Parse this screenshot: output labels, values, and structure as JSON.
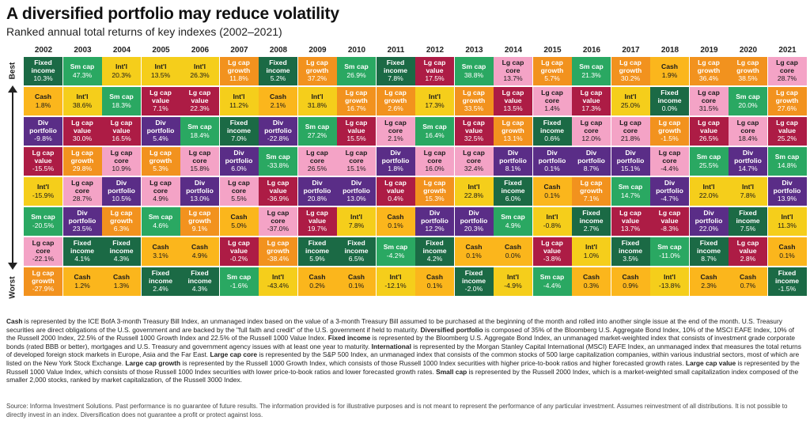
{
  "title": "A diversified portfolio may reduce volatility",
  "subtitle": "Ranked annual total returns of key indexes (2002–2021)",
  "axis": {
    "best": "Best",
    "worst": "Worst"
  },
  "colors": {
    "Fixed income": "#1b6a45",
    "Sm cap": "#2aa862",
    "Int'l": "#f5ce1b",
    "Lg cap core": "#f4a3c6",
    "Lg cap growth": "#f2921e",
    "Lg cap value": "#ad1c45",
    "Cash": "#fbb61c",
    "Div portfolio": "#5a2d87"
  },
  "text_colors": {
    "Fixed income": "#ffffff",
    "Sm cap": "#ffffff",
    "Int'l": "#1a1a1a",
    "Lg cap core": "#1a1a1a",
    "Lg cap growth": "#ffffff",
    "Lg cap value": "#ffffff",
    "Cash": "#1a1a1a",
    "Div portfolio": "#ffffff"
  },
  "chart_data": {
    "type": "table",
    "years": [
      "2002",
      "2003",
      "2004",
      "2005",
      "2006",
      "2007",
      "2008",
      "2009",
      "2010",
      "2011",
      "2012",
      "2013",
      "2014",
      "2015",
      "2016",
      "2017",
      "2018",
      "2019",
      "2020",
      "2021"
    ],
    "columns": [
      [
        [
          "Fixed income",
          "10.3%"
        ],
        [
          "Cash",
          "1.8%"
        ],
        [
          "Div portfolio",
          "-9.8%"
        ],
        [
          "Lg cap value",
          "-15.5%"
        ],
        [
          "Int'l",
          "-15.9%"
        ],
        [
          "Sm cap",
          "-20.5%"
        ],
        [
          "Lg cap core",
          "-22.1%"
        ],
        [
          "Lg cap growth",
          "-27.9%"
        ]
      ],
      [
        [
          "Sm cap",
          "47.3%"
        ],
        [
          "Int'l",
          "38.6%"
        ],
        [
          "Lg cap value",
          "30.0%"
        ],
        [
          "Lg cap growth",
          "29.8%"
        ],
        [
          "Lg cap core",
          "28.7%"
        ],
        [
          "Div portfolio",
          "23.5%"
        ],
        [
          "Fixed income",
          "4.1%"
        ],
        [
          "Cash",
          "1.2%"
        ]
      ],
      [
        [
          "Int'l",
          "20.3%"
        ],
        [
          "Sm cap",
          "18.3%"
        ],
        [
          "Lg cap value",
          "16.5%"
        ],
        [
          "Lg cap core",
          "10.9%"
        ],
        [
          "Div portfolio",
          "10.5%"
        ],
        [
          "Lg cap growth",
          "6.3%"
        ],
        [
          "Fixed income",
          "4.3%"
        ],
        [
          "Cash",
          "1.3%"
        ]
      ],
      [
        [
          "Int'l",
          "13.5%"
        ],
        [
          "Lg cap value",
          "7.1%"
        ],
        [
          "Div portfolio",
          "5.4%"
        ],
        [
          "Lg cap growth",
          "5.3%"
        ],
        [
          "Lg cap core",
          "4.9%"
        ],
        [
          "Sm cap",
          "4.6%"
        ],
        [
          "Cash",
          "3.1%"
        ],
        [
          "Fixed income",
          "2.4%"
        ]
      ],
      [
        [
          "Int'l",
          "26.3%"
        ],
        [
          "Lg cap value",
          "22.3%"
        ],
        [
          "Sm cap",
          "18.4%"
        ],
        [
          "Lg cap core",
          "15.8%"
        ],
        [
          "Div portfolio",
          "13.0%"
        ],
        [
          "Lg cap growth",
          "9.1%"
        ],
        [
          "Cash",
          "4.9%"
        ],
        [
          "Fixed income",
          "4.3%"
        ]
      ],
      [
        [
          "Lg cap growth",
          "11.8%"
        ],
        [
          "Int'l",
          "11.2%"
        ],
        [
          "Fixed income",
          "7.0%"
        ],
        [
          "Div portfolio",
          "6.0%"
        ],
        [
          "Lg cap core",
          "5.5%"
        ],
        [
          "Cash",
          "5.0%"
        ],
        [
          "Lg cap value",
          "-0.2%"
        ],
        [
          "Sm cap",
          "-1.6%"
        ]
      ],
      [
        [
          "Fixed income",
          "5.2%"
        ],
        [
          "Cash",
          "2.1%"
        ],
        [
          "Div portfolio",
          "-22.8%"
        ],
        [
          "Sm cap",
          "-33.8%"
        ],
        [
          "Lg cap value",
          "-36.9%"
        ],
        [
          "Lg cap core",
          "-37.0%"
        ],
        [
          "Lg cap growth",
          "-38.4%"
        ],
        [
          "Int'l",
          "-43.4%"
        ]
      ],
      [
        [
          "Lg cap growth",
          "37.2%"
        ],
        [
          "Int'l",
          "31.8%"
        ],
        [
          "Sm cap",
          "27.2%"
        ],
        [
          "Lg cap core",
          "26.5%"
        ],
        [
          "Div portfolio",
          "20.8%"
        ],
        [
          "Lg cap value",
          "19.7%"
        ],
        [
          "Fixed income",
          "5.9%"
        ],
        [
          "Cash",
          "0.2%"
        ]
      ],
      [
        [
          "Sm cap",
          "26.9%"
        ],
        [
          "Lg cap growth",
          "16.7%"
        ],
        [
          "Lg cap value",
          "15.5%"
        ],
        [
          "Lg cap core",
          "15.1%"
        ],
        [
          "Div portfolio",
          "13.0%"
        ],
        [
          "Int'l",
          "7.8%"
        ],
        [
          "Fixed income",
          "6.5%"
        ],
        [
          "Cash",
          "0.1%"
        ]
      ],
      [
        [
          "Fixed income",
          "7.8%"
        ],
        [
          "Lg cap growth",
          "2.6%"
        ],
        [
          "Lg cap core",
          "2.1%"
        ],
        [
          "Div portfolio",
          "1.8%"
        ],
        [
          "Lg cap value",
          "0.4%"
        ],
        [
          "Cash",
          "0.1%"
        ],
        [
          "Sm cap",
          "-4.2%"
        ],
        [
          "Int'l",
          "-12.1%"
        ]
      ],
      [
        [
          "Lg cap value",
          "17.5%"
        ],
        [
          "Int'l",
          "17.3%"
        ],
        [
          "Sm cap",
          "16.4%"
        ],
        [
          "Lg cap core",
          "16.0%"
        ],
        [
          "Lg cap growth",
          "15.3%"
        ],
        [
          "Div portfolio",
          "12.2%"
        ],
        [
          "Fixed income",
          "4.2%"
        ],
        [
          "Cash",
          "0.1%"
        ]
      ],
      [
        [
          "Sm cap",
          "38.8%"
        ],
        [
          "Lg cap growth",
          "33.5%"
        ],
        [
          "Lg cap value",
          "32.5%"
        ],
        [
          "Lg cap core",
          "32.4%"
        ],
        [
          "Int'l",
          "22.8%"
        ],
        [
          "Div portfolio",
          "20.3%"
        ],
        [
          "Cash",
          "0.1%"
        ],
        [
          "Fixed income",
          "-2.0%"
        ]
      ],
      [
        [
          "Lg cap core",
          "13.7%"
        ],
        [
          "Lg cap value",
          "13.5%"
        ],
        [
          "Lg cap growth",
          "13.1%"
        ],
        [
          "Div portfolio",
          "8.1%"
        ],
        [
          "Fixed income",
          "6.0%"
        ],
        [
          "Sm cap",
          "4.9%"
        ],
        [
          "Cash",
          "0.0%"
        ],
        [
          "Int'l",
          "-4.9%"
        ]
      ],
      [
        [
          "Lg cap growth",
          "5.7%"
        ],
        [
          "Lg cap core",
          "1.4%"
        ],
        [
          "Fixed income",
          "0.6%"
        ],
        [
          "Div portfolio",
          "0.1%"
        ],
        [
          "Cash",
          "0.1%"
        ],
        [
          "Int'l",
          "-0.8%"
        ],
        [
          "Lg cap value",
          "-3.8%"
        ],
        [
          "Sm cap",
          "-4.4%"
        ]
      ],
      [
        [
          "Sm cap",
          "21.3%"
        ],
        [
          "Lg cap value",
          "17.3%"
        ],
        [
          "Lg cap core",
          "12.0%"
        ],
        [
          "Div portfolio",
          "8.7%"
        ],
        [
          "Lg cap growth",
          "7.1%"
        ],
        [
          "Fixed income",
          "2.7%"
        ],
        [
          "Int'l",
          "1.0%"
        ],
        [
          "Cash",
          "0.3%"
        ]
      ],
      [
        [
          "Lg cap growth",
          "30.2%"
        ],
        [
          "Int'l",
          "25.0%"
        ],
        [
          "Lg cap core",
          "21.8%"
        ],
        [
          "Div portfolio",
          "15.1%"
        ],
        [
          "Sm cap",
          "14.7%"
        ],
        [
          "Lg cap value",
          "13.7%"
        ],
        [
          "Fixed income",
          "3.5%"
        ],
        [
          "Cash",
          "0.9%"
        ]
      ],
      [
        [
          "Cash",
          "1.9%"
        ],
        [
          "Fixed income",
          "0.0%"
        ],
        [
          "Lg cap growth",
          "-1.5%"
        ],
        [
          "Lg cap core",
          "-4.4%"
        ],
        [
          "Div portfolio",
          "-4.7%"
        ],
        [
          "Lg cap value",
          "-8.3%"
        ],
        [
          "Sm cap",
          "-11.0%"
        ],
        [
          "Int'l",
          "-13.8%"
        ]
      ],
      [
        [
          "Lg cap growth",
          "36.4%"
        ],
        [
          "Lg cap core",
          "31.5%"
        ],
        [
          "Lg cap value",
          "26.5%"
        ],
        [
          "Sm cap",
          "25.5%"
        ],
        [
          "Int'l",
          "22.0%"
        ],
        [
          "Div portfolio",
          "22.0%"
        ],
        [
          "Fixed income",
          "8.7%"
        ],
        [
          "Cash",
          "2.3%"
        ]
      ],
      [
        [
          "Lg cap growth",
          "38.5%"
        ],
        [
          "Sm cap",
          "20.0%"
        ],
        [
          "Lg cap core",
          "18.4%"
        ],
        [
          "Div portfolio",
          "14.7%"
        ],
        [
          "Int'l",
          "7.8%"
        ],
        [
          "Fixed income",
          "7.5%"
        ],
        [
          "Lg cap value",
          "2.8%"
        ],
        [
          "Cash",
          "0.7%"
        ]
      ],
      [
        [
          "Lg cap core",
          "28.7%"
        ],
        [
          "Lg cap growth",
          "27.6%"
        ],
        [
          "Lg cap value",
          "25.2%"
        ],
        [
          "Sm cap",
          "14.8%"
        ],
        [
          "Div portfolio",
          "13.9%"
        ],
        [
          "Int'l",
          "11.3%"
        ],
        [
          "Cash",
          "0.1%"
        ],
        [
          "Fixed income",
          "-1.5%"
        ]
      ]
    ]
  },
  "notes": [
    {
      "b": "Cash",
      "t": " is represented by the ICE BofA 3-month Treasury Bill Index, an unmanaged index based on the value of a 3-month Treasury Bill assumed to be purchased at the beginning of the month and rolled into another single issue at the end of the month. U.S. Treasury securities are direct obligations of the U.S. government and are backed by the \"full faith and credit\" of the U.S. government if held to maturity. "
    },
    {
      "b": "Diversified portfolio",
      "t": " is composed of 35% of the Bloomberg U.S. Aggregate Bond Index, 10% of the MSCI EAFE Index, 10% of the Russell 2000 Index, 22.5% of the Russell 1000 Growth Index and 22.5% of the Russell 1000 Value Index. "
    },
    {
      "b": "Fixed income",
      "t": " is represented by the Bloomberg U.S. Aggregate Bond Index, an unmanaged market-weighted index that consists of investment grade corporate bonds (rated BBB or better), mortgages and U.S. Treasury and government agency issues with at least one year to maturity. "
    },
    {
      "b": "International",
      "t": " is represented by the Morgan Stanley Capital International (MSCI) EAFE Index, an unmanaged index that measures the total returns of developed foreign stock markets in Europe, Asia and the Far East. "
    },
    {
      "b": "Large cap core",
      "t": " is represented by the S&P 500 Index, an unmanaged index that consists of the common stocks of 500 large capitalization companies, within various industrial sectors, most of which are listed on the New York Stock Exchange. "
    },
    {
      "b": "Large cap growth",
      "t": " is represented by the Russell 1000 Growth Index, which consists of those Russell 1000 Index securities with higher price-to-book ratios and higher forecasted growth rates. "
    },
    {
      "b": "Large cap value",
      "t": " is represented by the Russell 1000 Value Index, which consists of those Russell 1000 Index securities with lower price-to-book ratios and lower forecasted growth rates. "
    },
    {
      "b": "Small cap",
      "t": " is represented by the Russell 2000 Index, which is a market-weighted small capitalization index composed of the smaller 2,000 stocks, ranked by market capitalization, of the Russell 3000 Index."
    }
  ],
  "source": "Source: Informa Investment Solutions. Past performance is no guarantee of future results. The information provided is for illustrative purposes and is not meant to represent the performance of any particular investment. Assumes reinvestment of all distributions. It is not possible to directly invest in an index. Diversification does not guarantee a profit or protect against loss."
}
